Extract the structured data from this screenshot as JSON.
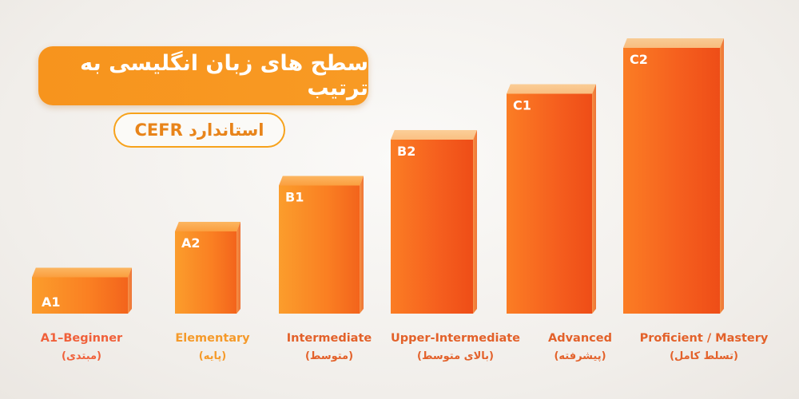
{
  "title": "سطح های زبان انگلیسی به ترتیب",
  "subtitle": "استاندارد CEFR",
  "colors": {
    "accent": "#f7941d",
    "label_orange": "#f59a2a",
    "label_deep": "#e3612a"
  },
  "chart_data": {
    "type": "bar",
    "categories": [
      "A1",
      "A2",
      "B1",
      "B2",
      "C1",
      "C2"
    ],
    "values": [
      1,
      2,
      3,
      4,
      5,
      6
    ],
    "english_labels": [
      "A1–Beginner",
      "Elementary",
      "Intermediate",
      "Upper-Intermediate",
      "Advanced",
      "Proficient / Mastery"
    ],
    "persian_labels": [
      "(مبتدی)",
      "(پایه)",
      "(متوسط)",
      "(بالای متوسط)",
      "(پیشرفته)",
      "(تسلط کامل)"
    ],
    "ylim": [
      0,
      6
    ],
    "grid": false,
    "legend": "none"
  }
}
